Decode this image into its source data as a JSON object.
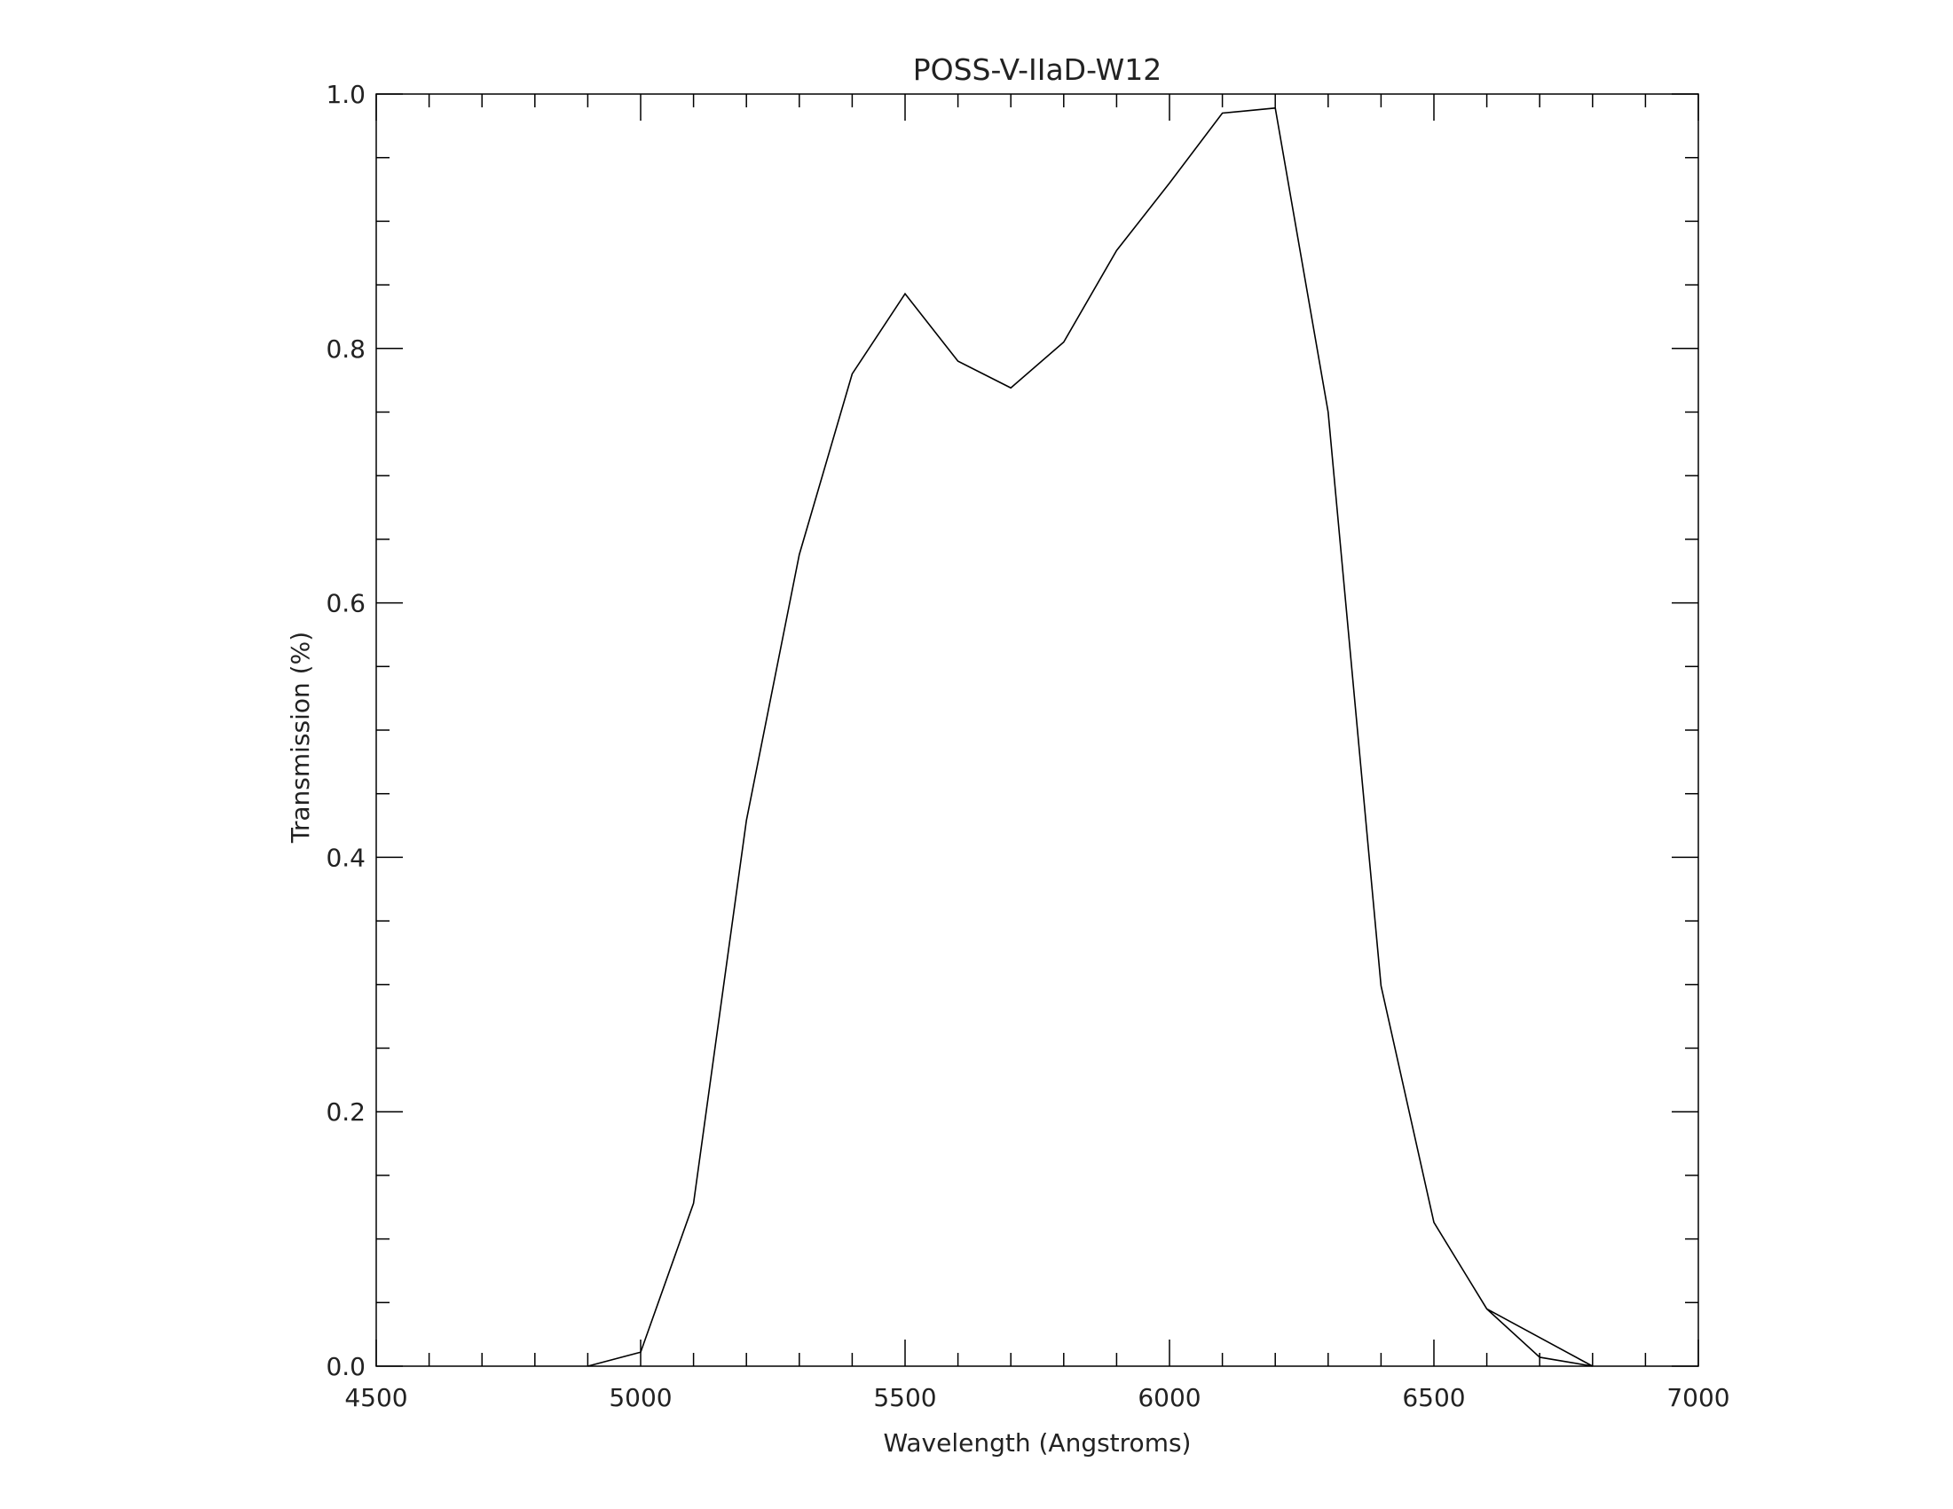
{
  "chart_data": {
    "type": "line",
    "title": "POSS-V-IIaD-W12",
    "xlabel": "Wavelength (Angstroms)",
    "ylabel": "Transmission (%)",
    "xlim": [
      4500,
      7000
    ],
    "ylim": [
      0.0,
      1.0
    ],
    "xticks": [
      "4500",
      "5000",
      "5500",
      "6000",
      "6500",
      "7000"
    ],
    "yticks": [
      "0.0",
      "0.2",
      "0.4",
      "0.6",
      "0.8",
      "1.0"
    ],
    "grid": false,
    "line_color": "#000000",
    "x": [
      4900,
      5000,
      5100,
      5200,
      5300,
      5400,
      5500,
      5600,
      5700,
      5800,
      5900,
      6000,
      6100,
      6200,
      6300,
      6400,
      6500,
      6600,
      6700,
      6800,
      6600
    ],
    "y": [
      0.0,
      0.011,
      0.128,
      0.429,
      0.638,
      0.78,
      0.843,
      0.79,
      0.769,
      0.805,
      0.877,
      0.93,
      0.985,
      0.989,
      0.75,
      0.299,
      0.113,
      0.045,
      0.007,
      0.0,
      0.045
    ]
  }
}
